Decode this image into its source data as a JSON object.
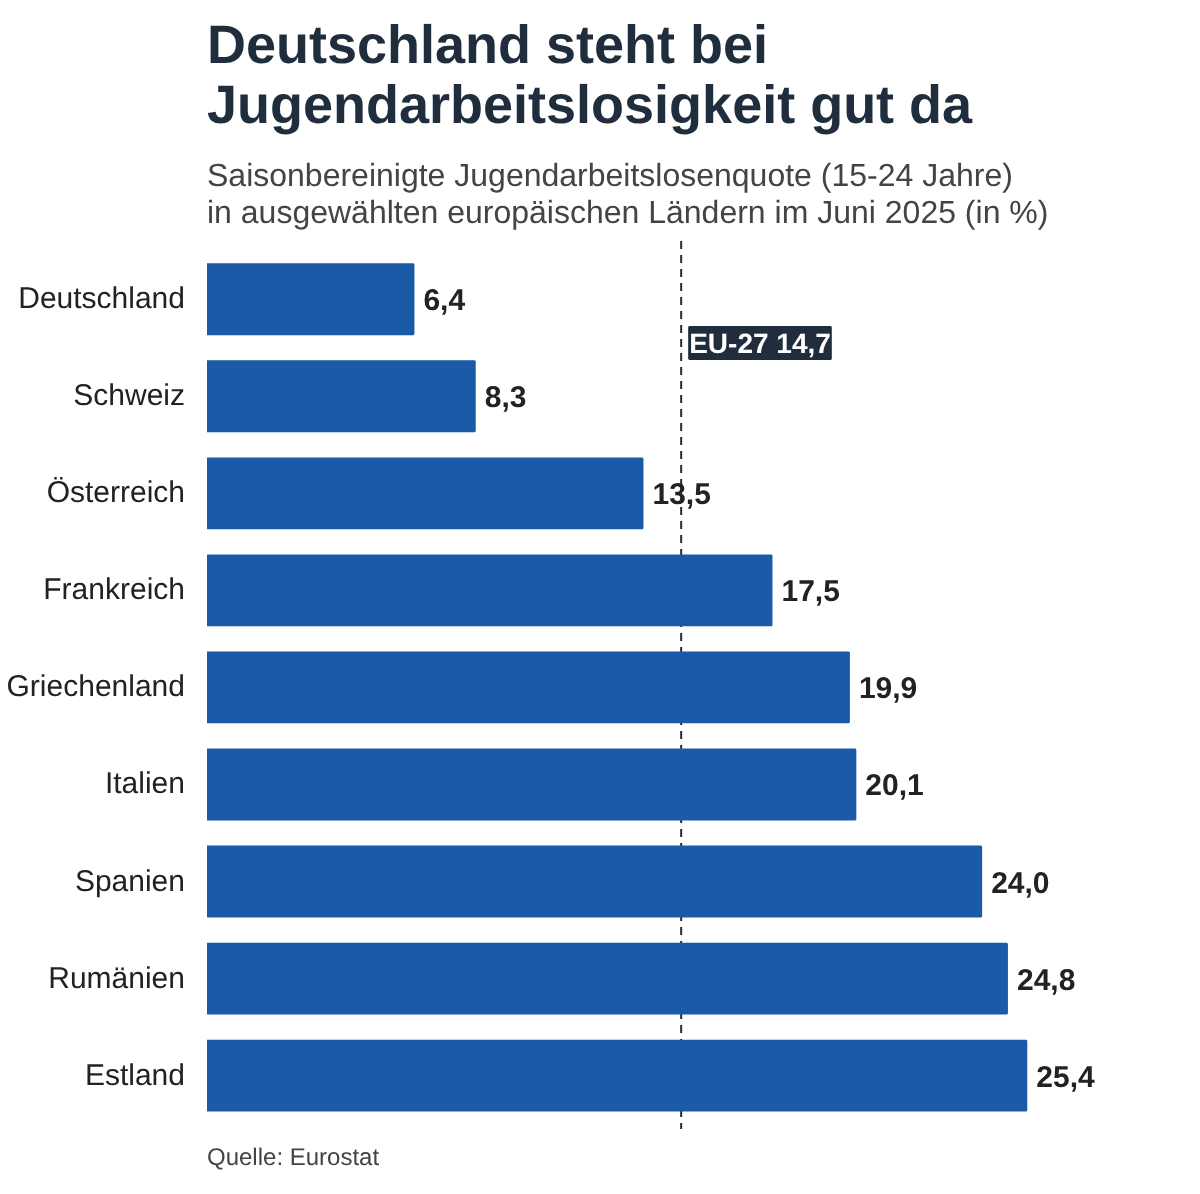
{
  "chart_data": {
    "type": "bar",
    "orientation": "horizontal",
    "title": "Deutschland steht bei Jugendarbeitslosigkeit gut da",
    "subtitle": "Saisonbereinigte Jugendarbeitslosenquote (15-24 Jahre) in ausgewählten europäischen Ländern im Juni 2025 (in %)",
    "categories": [
      "Deutschland",
      "Schweiz",
      "Österreich",
      "Frankreich",
      "Griechenland",
      "Italien",
      "Spanien",
      "Rumänien",
      "Estland"
    ],
    "values": [
      6.4,
      8.3,
      13.5,
      17.5,
      19.9,
      20.1,
      24.0,
      24.8,
      25.4
    ],
    "value_labels": [
      "6,4",
      "8,3",
      "13,5",
      "17,5",
      "19,9",
      "20,1",
      "24,0",
      "24,8",
      "25,4"
    ],
    "color": "#1a5aa6",
    "ref_lines": [
      {
        "axis": "x",
        "value": 14.7,
        "label": "EU-27 14,7",
        "color": "#1f2d3d",
        "line_style": "dashed"
      }
    ],
    "annotations": [
      "Quelle: Eurostat"
    ],
    "grid": false
  }
}
